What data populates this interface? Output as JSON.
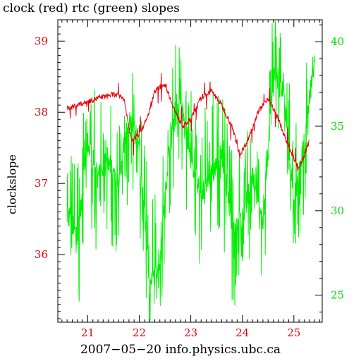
{
  "chart_data": {
    "type": "line",
    "title": "clock (red) rtc (green) slopes",
    "ylabel": "clockslope",
    "xlabel": "2007−05−20 info.physics.ubc.ca",
    "x_ticks": [
      "21",
      "22",
      "23",
      "24",
      "25"
    ],
    "xlim": [
      20.42,
      25.55
    ],
    "left_axis": {
      "ticks": [
        "36",
        "37",
        "38",
        "39"
      ],
      "ylim": [
        35.05,
        39.3
      ]
    },
    "right_axis": {
      "ticks": [
        "25",
        "30",
        "35",
        "40"
      ],
      "ylim": [
        23.4,
        41.3
      ]
    },
    "grid": false,
    "colors": {
      "clock": "#e8000b",
      "rtc": "#00ee00",
      "axes": "#000000"
    },
    "series": [
      {
        "name": "clock",
        "axis": "left",
        "x": [
          20.6,
          20.8,
          21.0,
          21.2,
          21.5,
          21.7,
          21.85,
          22.0,
          22.15,
          22.3,
          22.5,
          22.7,
          22.85,
          23.0,
          23.2,
          23.4,
          23.6,
          23.8,
          23.95,
          24.1,
          24.3,
          24.5,
          24.7,
          24.9,
          25.1,
          25.3
        ],
        "values": [
          38.05,
          38.1,
          38.15,
          38.2,
          38.25,
          38.2,
          37.6,
          37.7,
          37.9,
          38.3,
          38.4,
          38.0,
          37.8,
          37.9,
          38.2,
          38.3,
          38.1,
          37.8,
          37.4,
          37.6,
          38.0,
          38.2,
          37.9,
          37.5,
          37.2,
          37.6
        ]
      },
      {
        "name": "rtc",
        "axis": "right",
        "x": [
          20.6,
          20.8,
          21.0,
          21.2,
          21.4,
          21.6,
          21.8,
          22.0,
          22.2,
          22.4,
          22.6,
          22.8,
          23.0,
          23.2,
          23.4,
          23.6,
          23.8,
          24.0,
          24.2,
          24.4,
          24.6,
          24.8,
          25.0,
          25.2,
          25.4
        ],
        "values": [
          30.0,
          28.5,
          34.0,
          32.0,
          33.0,
          31.5,
          35.5,
          34.0,
          25.5,
          27.0,
          34.5,
          36.5,
          33.0,
          31.0,
          32.0,
          33.5,
          29.0,
          29.5,
          32.0,
          29.0,
          38.0,
          37.0,
          30.5,
          34.0,
          39.0
        ]
      }
    ]
  }
}
